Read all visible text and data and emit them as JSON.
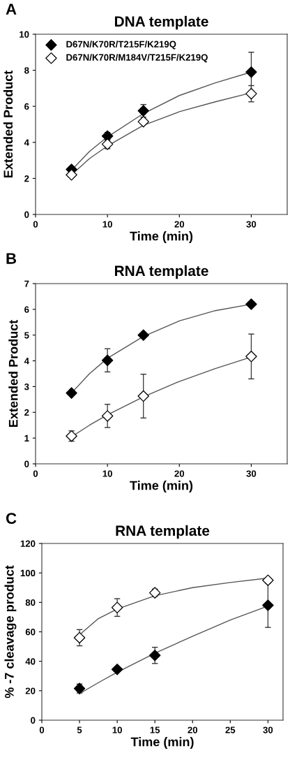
{
  "chart_data": [
    {
      "type": "scatter",
      "title": "DNA template",
      "xlabel": "Time (min)",
      "ylabel": "Extended Product",
      "annotations": [
        "A"
      ],
      "xlim": [
        0,
        35
      ],
      "xticks": [
        0,
        10,
        20,
        30
      ],
      "ylim": [
        0,
        10
      ],
      "yticks": [
        0,
        2,
        4,
        6,
        8,
        10
      ],
      "grid": false,
      "legend": "top left",
      "series": [
        {
          "name": "D67N/K70R/T215F/K219Q",
          "marker": "diamond",
          "color": "#000000",
          "x": [
            5,
            10,
            15,
            30
          ],
          "values": [
            2.5,
            4.35,
            5.75,
            7.9
          ],
          "errors": [
            null,
            0.2,
            0.35,
            1.1
          ]
        },
        {
          "name": "D67N/K70R/M184V/T215F/K219Q",
          "marker": "diamond",
          "color": "#ffffff",
          "x": [
            5,
            10,
            15,
            30
          ],
          "values": [
            2.2,
            3.9,
            5.15,
            6.7
          ],
          "errors": [
            null,
            0.25,
            null,
            0.45
          ]
        },
        {
          "type": "line",
          "marker": "none",
          "color": "#555555",
          "x": [
            5,
            7.5,
            10,
            15,
            20,
            25,
            30
          ],
          "values": [
            2.45,
            3.5,
            4.3,
            5.6,
            6.6,
            7.3,
            7.9
          ]
        },
        {
          "type": "line",
          "marker": "none",
          "color": "#555555",
          "x": [
            5,
            7.5,
            10,
            15,
            20,
            25,
            30
          ],
          "values": [
            2.2,
            3.1,
            3.8,
            4.95,
            5.7,
            6.25,
            6.75
          ]
        }
      ]
    },
    {
      "type": "scatter",
      "title": "RNA template",
      "xlabel": "Time (min)",
      "ylabel": "Extended Product",
      "annotations": [
        "B"
      ],
      "xlim": [
        0,
        35
      ],
      "xticks": [
        0,
        10,
        20,
        30
      ],
      "ylim": [
        0,
        7
      ],
      "yticks": [
        0,
        1,
        2,
        3,
        4,
        5,
        6,
        7
      ],
      "grid": false,
      "series": [
        {
          "marker": "diamond",
          "color": "#000000",
          "x": [
            5,
            10,
            15,
            30
          ],
          "values": [
            2.75,
            4.02,
            5.0,
            6.2
          ],
          "errors": [
            null,
            0.45,
            null,
            null
          ]
        },
        {
          "marker": "diamond",
          "color": "#ffffff",
          "x": [
            5,
            10,
            15,
            30
          ],
          "values": [
            1.08,
            1.86,
            2.63,
            4.17
          ],
          "errors": [
            0.2,
            0.45,
            0.85,
            0.87
          ]
        },
        {
          "type": "line",
          "marker": "none",
          "color": "#555555",
          "x": [
            5,
            7.5,
            10,
            15,
            20,
            25,
            30
          ],
          "values": [
            2.75,
            3.5,
            4.1,
            4.95,
            5.55,
            5.95,
            6.2
          ]
        },
        {
          "type": "line",
          "marker": "none",
          "color": "#555555",
          "x": [
            5,
            7.5,
            10,
            15,
            20,
            25,
            30
          ],
          "values": [
            1.05,
            1.5,
            1.9,
            2.6,
            3.2,
            3.7,
            4.15
          ]
        }
      ]
    },
    {
      "type": "scatter",
      "title": "RNA template",
      "xlabel": "Time (min)",
      "ylabel": "% -7 cleavage product",
      "annotations": [
        "C"
      ],
      "xlim": [
        0,
        32
      ],
      "xticks": [
        0,
        5,
        10,
        15,
        20,
        25,
        30
      ],
      "ylim": [
        0,
        120
      ],
      "yticks": [
        0,
        20,
        40,
        60,
        80,
        100,
        120
      ],
      "grid": false,
      "series": [
        {
          "marker": "diamond",
          "color": "#000000",
          "x": [
            5,
            10,
            15,
            30
          ],
          "values": [
            21.5,
            34.5,
            44,
            78
          ],
          "errors": [
            3,
            null,
            5.5,
            15
          ]
        },
        {
          "marker": "diamond",
          "color": "#ffffff",
          "x": [
            5,
            10,
            15,
            30
          ],
          "values": [
            56,
            76.5,
            86.5,
            95
          ],
          "errors": [
            5.5,
            6,
            2.5,
            null
          ]
        },
        {
          "type": "line",
          "marker": "none",
          "color": "#555555",
          "x": [
            5,
            7.5,
            10,
            15,
            20,
            25,
            30
          ],
          "values": [
            18,
            25.5,
            32.5,
            45.5,
            57,
            68,
            77.5
          ]
        },
        {
          "type": "line",
          "marker": "none",
          "color": "#555555",
          "x": [
            5,
            7.5,
            10,
            15,
            20,
            25,
            30
          ],
          "values": [
            58,
            69,
            75.5,
            84.5,
            90,
            93.5,
            96.5
          ]
        }
      ]
    }
  ]
}
